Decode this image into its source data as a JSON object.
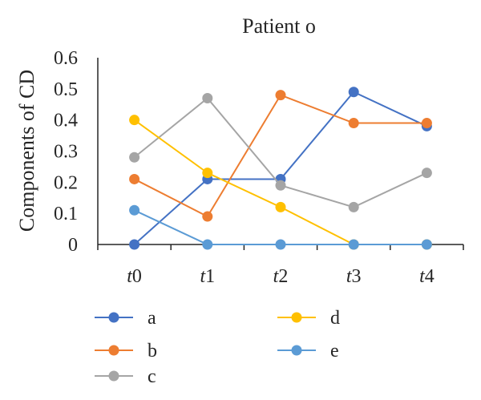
{
  "chart_data": {
    "type": "line",
    "title": "Patient o",
    "ylabel": "Components of CD",
    "xlabel": "",
    "categories": [
      {
        "prefix": "t",
        "suffix": "0"
      },
      {
        "prefix": "t",
        "suffix": "1"
      },
      {
        "prefix": "t",
        "suffix": "2"
      },
      {
        "prefix": "t",
        "suffix": "3"
      },
      {
        "prefix": "t",
        "suffix": "4"
      }
    ],
    "yticks": [
      "0",
      "0.1",
      "0.2",
      "0.3",
      "0.4",
      "0.5",
      "0.6"
    ],
    "ylim": [
      0,
      0.6
    ],
    "grid": false,
    "legend_position": "bottom",
    "series": [
      {
        "name": "a",
        "color": "#4472C4",
        "values": [
          0,
          0.21,
          0.21,
          0.49,
          0.38
        ]
      },
      {
        "name": "b",
        "color": "#ED7D31",
        "values": [
          0.21,
          0.09,
          0.48,
          0.39,
          0.39
        ]
      },
      {
        "name": "c",
        "color": "#A5A5A5",
        "values": [
          0.28,
          0.47,
          0.19,
          0.12,
          0.23
        ]
      },
      {
        "name": "d",
        "color": "#FFC000",
        "values": [
          0.4,
          0.23,
          0.12,
          0,
          0
        ]
      },
      {
        "name": "e",
        "color": "#5B9BD5",
        "values": [
          0.11,
          0,
          0,
          0,
          0
        ]
      }
    ]
  }
}
